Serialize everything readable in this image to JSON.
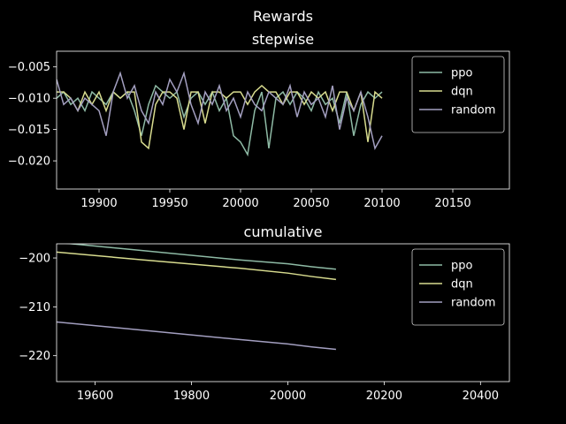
{
  "figure": {
    "suptitle": "Rewards"
  },
  "colors": {
    "background": "#000000",
    "axes": "#ffffff",
    "ppo": "#8ebaa5",
    "dqn": "#d8dc8f",
    "random": "#a39fc0"
  },
  "chart_data": [
    {
      "type": "line",
      "title": "stepwise",
      "xlabel": "",
      "ylabel": "",
      "xlim": [
        19870,
        20190
      ],
      "ylim": [
        -0.0245,
        -0.0025
      ],
      "xticks": [
        19900,
        19950,
        20000,
        20050,
        20100,
        20150
      ],
      "yticks": [
        -0.005,
        -0.01,
        -0.015,
        -0.02
      ],
      "xtick_labels": [
        "19900",
        "19950",
        "20000",
        "20050",
        "20100",
        "20150"
      ],
      "ytick_labels": [
        "−0.005",
        "−0.010",
        "−0.015",
        "−0.020"
      ],
      "grid": false,
      "legend": "top-right",
      "series": [
        {
          "name": "ppo",
          "color": "#8ebaa5",
          "x": [
            19870,
            19875,
            19880,
            19885,
            19890,
            19895,
            19900,
            19905,
            19910,
            19915,
            19920,
            19925,
            19930,
            19935,
            19940,
            19945,
            19950,
            19955,
            19960,
            19965,
            19970,
            19975,
            19980,
            19985,
            19990,
            19995,
            20000,
            20005,
            20010,
            20015,
            20020,
            20025,
            20030,
            20035,
            20040,
            20045,
            20050,
            20055,
            20060,
            20065,
            20070,
            20075,
            20080,
            20085,
            20090,
            20095,
            20100
          ],
          "y": [
            -0.01,
            -0.009,
            -0.011,
            -0.01,
            -0.012,
            -0.009,
            -0.01,
            -0.011,
            -0.009,
            -0.01,
            -0.009,
            -0.012,
            -0.016,
            -0.011,
            -0.008,
            -0.009,
            -0.01,
            -0.009,
            -0.013,
            -0.01,
            -0.009,
            -0.011,
            -0.009,
            -0.012,
            -0.01,
            -0.016,
            -0.017,
            -0.019,
            -0.012,
            -0.009,
            -0.018,
            -0.01,
            -0.009,
            -0.011,
            -0.009,
            -0.01,
            -0.012,
            -0.009,
            -0.011,
            -0.01,
            -0.014,
            -0.009,
            -0.016,
            -0.011,
            -0.009,
            -0.01,
            -0.009
          ]
        },
        {
          "name": "dqn",
          "color": "#d8dc8f",
          "x": [
            19870,
            19875,
            19880,
            19885,
            19890,
            19895,
            19900,
            19905,
            19910,
            19915,
            19920,
            19925,
            19930,
            19935,
            19940,
            19945,
            19950,
            19955,
            19960,
            19965,
            19970,
            19975,
            19980,
            19985,
            19990,
            19995,
            20000,
            20005,
            20010,
            20015,
            20020,
            20025,
            20030,
            20035,
            20040,
            20045,
            20050,
            20055,
            20060,
            20065,
            20070,
            20075,
            20080,
            20085,
            20090,
            20095,
            20100
          ],
          "y": [
            -0.009,
            -0.009,
            -0.01,
            -0.012,
            -0.009,
            -0.011,
            -0.009,
            -0.012,
            -0.009,
            -0.01,
            -0.009,
            -0.009,
            -0.017,
            -0.018,
            -0.011,
            -0.009,
            -0.009,
            -0.01,
            -0.015,
            -0.009,
            -0.009,
            -0.014,
            -0.009,
            -0.009,
            -0.01,
            -0.009,
            -0.009,
            -0.011,
            -0.009,
            -0.008,
            -0.009,
            -0.009,
            -0.011,
            -0.009,
            -0.009,
            -0.011,
            -0.009,
            -0.01,
            -0.009,
            -0.012,
            -0.009,
            -0.009,
            -0.012,
            -0.009,
            -0.017,
            -0.009,
            -0.01
          ]
        },
        {
          "name": "random",
          "color": "#a39fc0",
          "x": [
            19870,
            19875,
            19880,
            19885,
            19890,
            19895,
            19900,
            19905,
            19910,
            19915,
            19920,
            19925,
            19930,
            19935,
            19940,
            19945,
            19950,
            19955,
            19960,
            19965,
            19970,
            19975,
            19980,
            19985,
            19990,
            19995,
            20000,
            20005,
            20010,
            20015,
            20020,
            20025,
            20030,
            20035,
            20040,
            20045,
            20050,
            20055,
            20060,
            20065,
            20070,
            20075,
            20080,
            20085,
            20090,
            20095,
            20100
          ],
          "y": [
            -0.007,
            -0.011,
            -0.01,
            -0.012,
            -0.01,
            -0.011,
            -0.012,
            -0.016,
            -0.009,
            -0.006,
            -0.01,
            -0.008,
            -0.012,
            -0.014,
            -0.009,
            -0.011,
            -0.007,
            -0.009,
            -0.006,
            -0.011,
            -0.014,
            -0.009,
            -0.011,
            -0.008,
            -0.012,
            -0.01,
            -0.013,
            -0.009,
            -0.011,
            -0.012,
            -0.009,
            -0.01,
            -0.011,
            -0.008,
            -0.013,
            -0.009,
            -0.011,
            -0.01,
            -0.013,
            -0.008,
            -0.015,
            -0.01,
            -0.012,
            -0.009,
            -0.013,
            -0.018,
            -0.016
          ]
        }
      ]
    },
    {
      "type": "line",
      "title": "cumulative",
      "xlabel": "",
      "ylabel": "",
      "xlim": [
        19520,
        20460
      ],
      "ylim": [
        -225.3,
        -197.1
      ],
      "xticks": [
        19600,
        19800,
        20000,
        20200,
        20400
      ],
      "yticks": [
        -200,
        -210,
        -220
      ],
      "xtick_labels": [
        "19600",
        "19800",
        "20000",
        "20200",
        "20400"
      ],
      "ytick_labels": [
        "−200",
        "−210",
        "−220"
      ],
      "grid": false,
      "legend": "top-right",
      "series": [
        {
          "name": "ppo",
          "color": "#8ebaa5",
          "x": [
            19520,
            19700,
            19900,
            20000,
            20050,
            20100
          ],
          "y": [
            -196.8,
            -198.5,
            -200.4,
            -201.2,
            -201.8,
            -202.3
          ]
        },
        {
          "name": "dqn",
          "color": "#d8dc8f",
          "x": [
            19520,
            19700,
            19900,
            20000,
            20050,
            20100
          ],
          "y": [
            -198.8,
            -200.4,
            -202.1,
            -203.1,
            -203.8,
            -204.4
          ]
        },
        {
          "name": "random",
          "color": "#a39fc0",
          "x": [
            19520,
            19700,
            19900,
            20000,
            20050,
            20100
          ],
          "y": [
            -213.1,
            -214.8,
            -216.7,
            -217.6,
            -218.2,
            -218.7
          ]
        }
      ]
    }
  ]
}
